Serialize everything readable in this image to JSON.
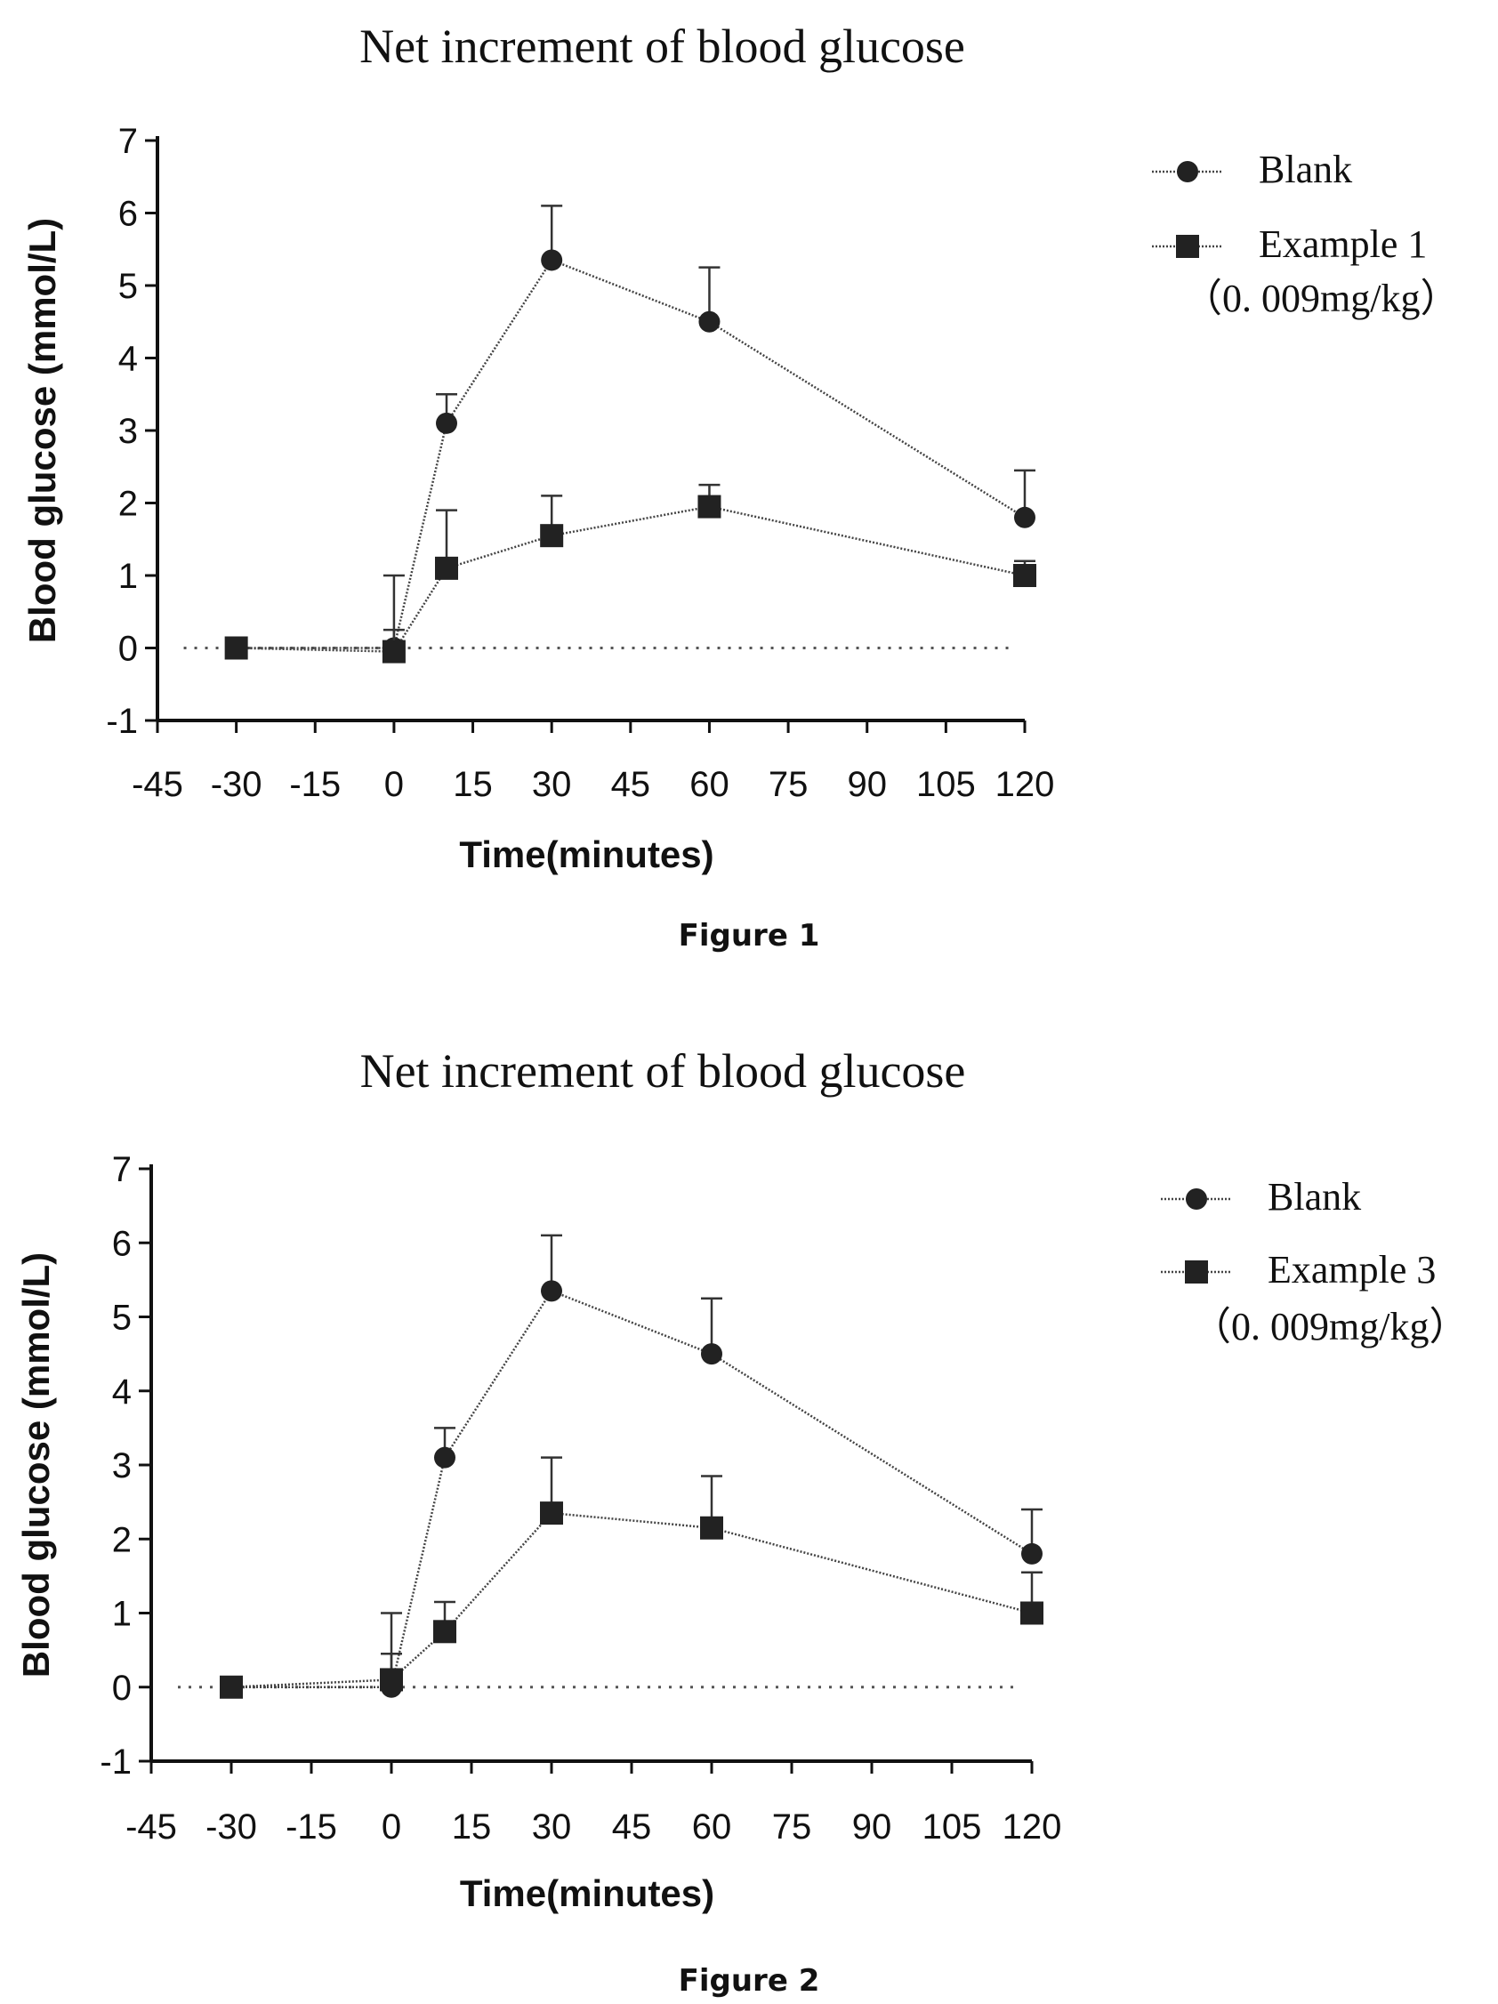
{
  "chart_data": [
    {
      "type": "line",
      "title": "Net increment of blood glucose",
      "xlabel": "Time(minutes)",
      "ylabel": "Blood glucose (mmol/L)",
      "caption": "Figure 1",
      "xlim": [
        -45,
        120
      ],
      "ylim": [
        -1,
        7
      ],
      "xticks": [
        -45,
        -30,
        -15,
        0,
        15,
        30,
        45,
        60,
        75,
        90,
        105,
        120
      ],
      "yticks": [
        -1,
        0,
        1,
        2,
        3,
        4,
        5,
        6,
        7
      ],
      "baseline_y": 0,
      "legend_position": "top-right",
      "series": [
        {
          "name": "Blank",
          "marker": "circle",
          "x": [
            -30,
            0,
            10,
            30,
            60,
            120
          ],
          "y": [
            0,
            0,
            3.1,
            5.35,
            4.5,
            1.8
          ],
          "error": [
            0,
            1.0,
            0.4,
            0.75,
            0.75,
            0.65
          ]
        },
        {
          "name": "Example 1",
          "name_line2": "（0. 009mg/kg）",
          "marker": "square",
          "x": [
            -30,
            0,
            10,
            30,
            60,
            120
          ],
          "y": [
            0,
            -0.05,
            1.1,
            1.55,
            1.95,
            1.0
          ],
          "error": [
            0,
            0.3,
            0.8,
            0.55,
            0.3,
            0.2
          ]
        }
      ]
    },
    {
      "type": "line",
      "title": "Net increment of blood glucose",
      "xlabel": "Time(minutes)",
      "ylabel": "Blood glucose (mmol/L)",
      "caption": "Figure 2",
      "xlim": [
        -45,
        120
      ],
      "ylim": [
        -1,
        7
      ],
      "xticks": [
        -45,
        -30,
        -15,
        0,
        15,
        30,
        45,
        60,
        75,
        90,
        105,
        120
      ],
      "yticks": [
        -1,
        0,
        1,
        2,
        3,
        4,
        5,
        6,
        7
      ],
      "baseline_y": 0,
      "legend_position": "top-right",
      "series": [
        {
          "name": "Blank",
          "marker": "circle",
          "x": [
            -30,
            0,
            10,
            30,
            60,
            120
          ],
          "y": [
            0,
            0,
            3.1,
            5.35,
            4.5,
            1.8
          ],
          "error": [
            0,
            1.0,
            0.4,
            0.75,
            0.75,
            0.6
          ]
        },
        {
          "name": "Example 3",
          "name_line2": "（0. 009mg/kg）",
          "marker": "square",
          "x": [
            -30,
            0,
            10,
            30,
            60,
            120
          ],
          "y": [
            0,
            0.1,
            0.75,
            2.35,
            2.15,
            1.0
          ],
          "error": [
            0,
            0.35,
            0.4,
            0.75,
            0.7,
            0.55
          ]
        }
      ]
    }
  ]
}
